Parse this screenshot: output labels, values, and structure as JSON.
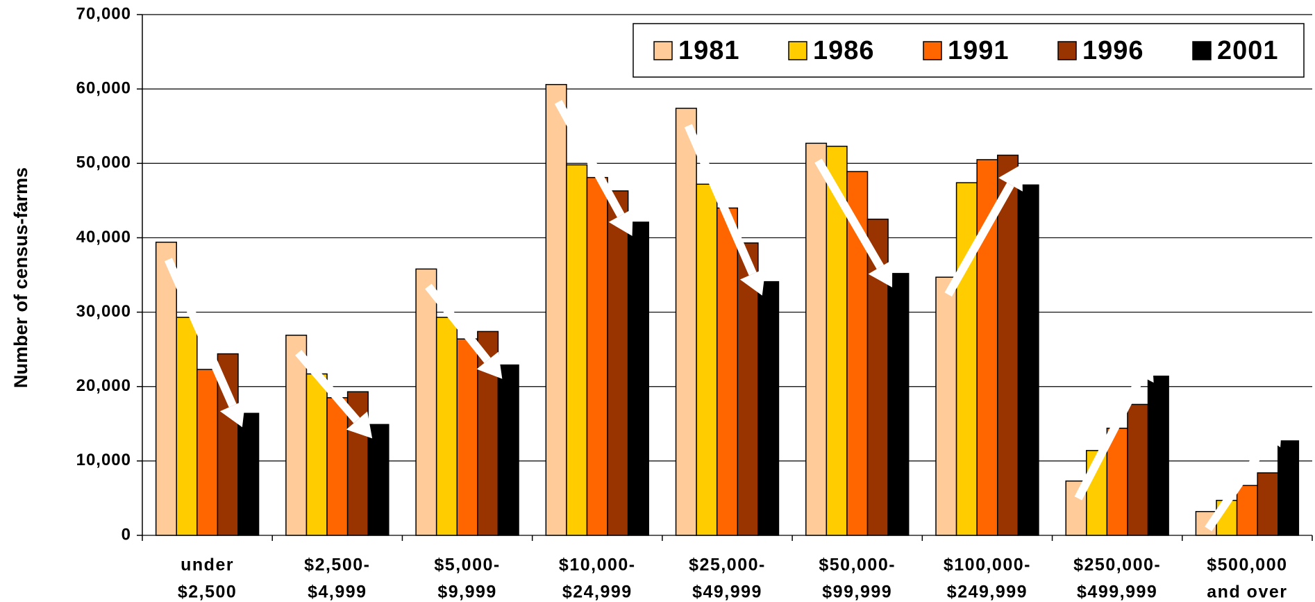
{
  "chart_data": {
    "type": "bar",
    "y_label": "Number of census-farms",
    "categories": [
      [
        "under",
        "$2,500"
      ],
      [
        "$2,500-",
        "$4,999"
      ],
      [
        "$5,000-",
        "$9,999"
      ],
      [
        "$10,000-",
        "$24,999"
      ],
      [
        "$25,000-",
        "$49,999"
      ],
      [
        "$50,000-",
        "$99,999"
      ],
      [
        "$100,000-",
        "$249,999"
      ],
      [
        "$250,000-",
        "$499,999"
      ],
      [
        "$500,000",
        "and over"
      ]
    ],
    "series": [
      {
        "name": "1981",
        "color": "#FFCC99",
        "values": [
          39400,
          26900,
          35800,
          60600,
          57400,
          52700,
          34700,
          7300,
          3200
        ]
      },
      {
        "name": "1986",
        "color": "#FFCC00",
        "values": [
          29300,
          21700,
          29300,
          49800,
          47200,
          52300,
          47400,
          11400,
          4700
        ]
      },
      {
        "name": "1991",
        "color": "#FF6600",
        "values": [
          22300,
          18500,
          26400,
          48100,
          44000,
          48900,
          50500,
          14400,
          6700
        ]
      },
      {
        "name": "1996",
        "color": "#993300",
        "values": [
          24400,
          19300,
          27400,
          46300,
          39300,
          42500,
          51100,
          17600,
          8400
        ]
      },
      {
        "name": "2001",
        "color": "#000000",
        "values": [
          16400,
          14900,
          22900,
          42100,
          34100,
          35200,
          47100,
          21400,
          12700
        ]
      }
    ],
    "ylim": [
      0,
      70000
    ],
    "yticks": [
      0,
      {
        "value": 10000,
        "label": "10,000"
      },
      {
        "value": 20000,
        "label": "20,000"
      },
      {
        "value": 30000,
        "label": "30,000"
      },
      {
        "value": 40000,
        "label": "40,000"
      },
      {
        "value": 50000,
        "label": "50,000"
      },
      {
        "value": 60000,
        "label": "60,000"
      },
      {
        "value": 70000,
        "label": "70,000"
      }
    ],
    "grid": true,
    "legend": "top-right"
  }
}
